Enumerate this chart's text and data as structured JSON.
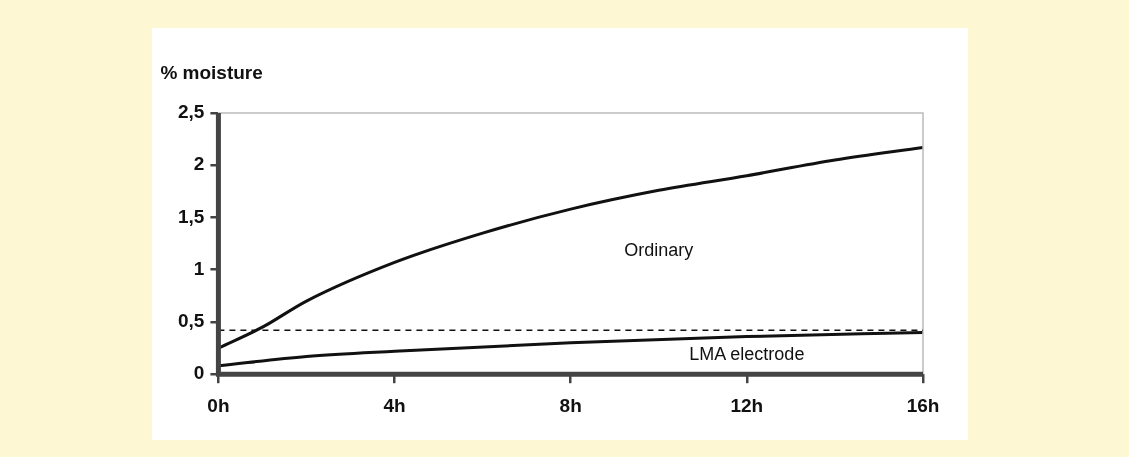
{
  "chart_data": {
    "type": "line",
    "ylabel": "% moisture",
    "x": [
      0,
      1,
      2,
      4,
      6,
      8,
      10,
      12,
      14,
      16
    ],
    "series": [
      {
        "name": "Ordinary",
        "color": "#111111",
        "values": [
          0.25,
          0.45,
          0.7,
          1.07,
          1.35,
          1.58,
          1.76,
          1.9,
          2.05,
          2.17
        ]
      },
      {
        "name": "LMA electrode",
        "color": "#111111",
        "x": [
          0,
          2,
          4,
          8,
          12,
          16
        ],
        "values": [
          0.08,
          0.17,
          0.22,
          0.3,
          0.36,
          0.4
        ]
      }
    ],
    "xlim": [
      0,
      16
    ],
    "xticks": [
      {
        "value": 0,
        "label": "0h"
      },
      {
        "value": 4,
        "label": "4h"
      },
      {
        "value": 8,
        "label": "8h"
      },
      {
        "value": 12,
        "label": "12h"
      },
      {
        "value": 16,
        "label": "16h"
      }
    ],
    "ylim": [
      0,
      2.5
    ],
    "yticks": [
      0,
      {
        "value": 0.5,
        "label": "0,5"
      },
      1,
      {
        "value": 1.5,
        "label": "1,5"
      },
      2,
      {
        "value": 2.5,
        "label": "2,5"
      }
    ],
    "ref_lines": [
      {
        "axis": "y",
        "value": 0.42,
        "line_style": "dashed",
        "color": "#111111"
      }
    ],
    "grid": false,
    "legend": false,
    "marker": "none",
    "line_style": "solid"
  }
}
